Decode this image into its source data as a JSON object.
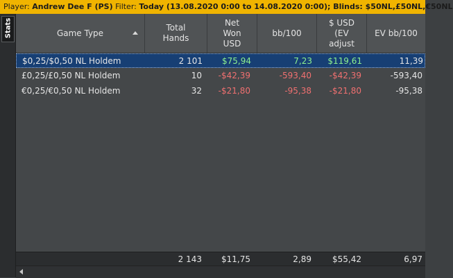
{
  "topbar": {
    "player_label": "Player:",
    "player_value": "Andrew Dee F (PS)",
    "filter_label": "Filter:",
    "filter_value": "Today (13.08.2020 0:00 to 14.08.2020 0:00); Blinds: $50NL,£50NL,€50NL"
  },
  "sidebar": {
    "tab_label": "Stats"
  },
  "table": {
    "columns": [
      {
        "label": "Game Type",
        "sorted": "ascending"
      },
      {
        "label": "Total Hands"
      },
      {
        "label": "Net Won USD"
      },
      {
        "label": "bb/100"
      },
      {
        "label": "$ USD (EV adjust"
      },
      {
        "label": "EV bb/100"
      }
    ],
    "rows": [
      {
        "game_type": "$0,25/$0,50 NL Holdem",
        "total_hands": "2 101",
        "net_won": "$75,94",
        "bb100": "7,23",
        "ev_usd": "$119,61",
        "ev_bb100": "11,39",
        "selected": true
      },
      {
        "game_type": "£0,25/£0,50 NL Holdem",
        "total_hands": "10",
        "net_won": "-$42,39",
        "bb100": "-593,40",
        "ev_usd": "-$42,39",
        "ev_bb100": "-593,40",
        "selected": false
      },
      {
        "game_type": "€0,25/€0,50 NL Holdem",
        "total_hands": "32",
        "net_won": "-$21,80",
        "bb100": "-95,38",
        "ev_usd": "-$21,80",
        "ev_bb100": "-95,38",
        "selected": false
      }
    ],
    "totals": {
      "game_type": "",
      "total_hands": "2 143",
      "net_won": "$11,75",
      "bb100": "2,89",
      "ev_usd": "$55,42",
      "ev_bb100": "6,97"
    }
  },
  "colors": {
    "topbar_bg": "#f0b400",
    "selected_row_bg": "#173f74",
    "positive": "#8ef08e",
    "negative": "#f07070"
  }
}
